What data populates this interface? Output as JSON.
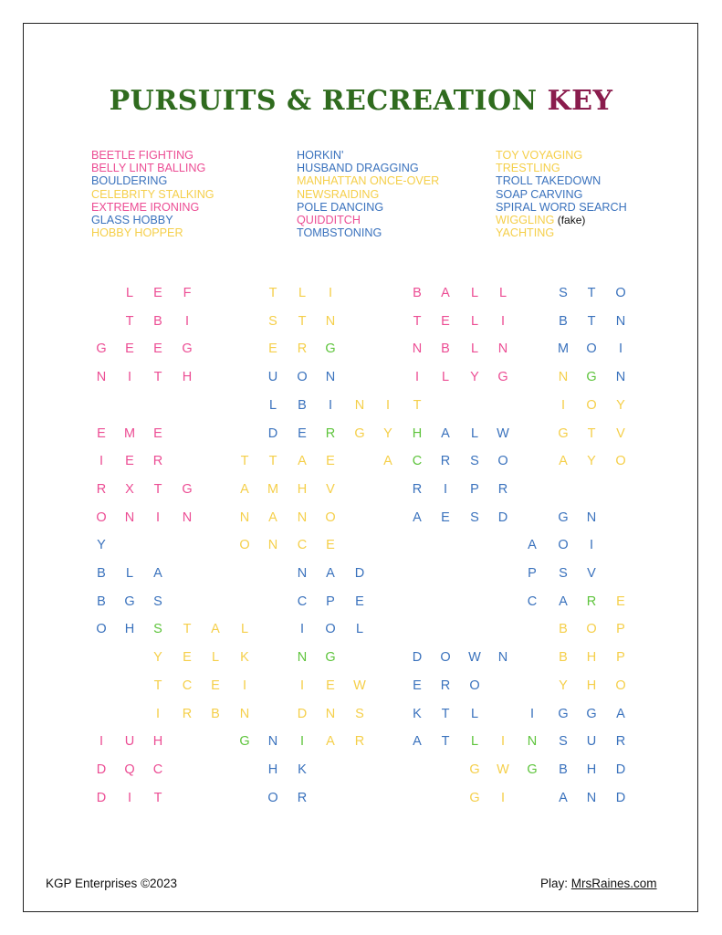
{
  "title": {
    "main": "PURSUITS & RECREATION",
    "key": "KEY"
  },
  "colors": {
    "p": "#ec4d94",
    "b": "#3a72bd",
    "y": "#f5cf4a",
    "g": "#5ec43c",
    "title_green": "#2f6b1e",
    "title_maroon": "#8a1c4d"
  },
  "word_columns": [
    [
      {
        "text": "BEETLE FIGHTING",
        "color": "p"
      },
      {
        "text": "BELLY LINT BALLING",
        "color": "p"
      },
      {
        "text": "BOULDERING",
        "color": "b"
      },
      {
        "text": "CELEBRITY STALKING",
        "color": "y"
      },
      {
        "text": "EXTREME IRONING",
        "color": "p"
      },
      {
        "text": "GLASS HOBBY",
        "color": "b"
      },
      {
        "text": "HOBBY HOPPER",
        "color": "y"
      }
    ],
    [
      {
        "text": "HORKIN'",
        "color": "b"
      },
      {
        "text": "HUSBAND DRAGGING",
        "color": "b"
      },
      {
        "text": "MANHATTAN ONCE-OVER",
        "color": "y"
      },
      {
        "text": "NEWSRAIDING",
        "color": "y"
      },
      {
        "text": "POLE DANCING",
        "color": "b"
      },
      {
        "text": "QUIDDITCH",
        "color": "p"
      },
      {
        "text": "TOMBSTONING",
        "color": "b"
      }
    ],
    [
      {
        "text": "TOY VOYAGING",
        "color": "y"
      },
      {
        "text": "TRESTLING",
        "color": "y"
      },
      {
        "text": "TROLL TAKEDOWN",
        "color": "b"
      },
      {
        "text": "SOAP CARVING",
        "color": "b"
      },
      {
        "text": "SPIRAL WORD SEARCH",
        "color": "b"
      },
      {
        "text": "WIGGLING",
        "color": "y",
        "note": "(fake)"
      },
      {
        "text": "YACHTING",
        "color": "y"
      }
    ]
  ],
  "grid": {
    "letters": [
      ".LEF..TLI..BALL.STO",
      ".TBI..STN..TELI.BTN",
      "GEEG..ERG..NBLN.MOI",
      "NITH..UON..ILYG.NGN",
      "......LBINIT....IOY",
      "EME...DERGYHALW.GTV",
      "IER..TTAE.ACRSO.AYO",
      "RXTG.AMHV..RIPR....",
      "ONIN.NANO..AESD.GN.",
      "Y....ONCE......AOI.",
      "BLA....NAD.....PSV.",
      "BGS....CPE.....CARE",
      "OHSTAL.IOL......BOP",
      "..YELK.NG..DOWN.BHP",
      "..TCEI.IEW.ERO..YHO",
      "..IRBN.DNS.KTL.IGGA",
      "IUH..GNIAR.ATLINSUR",
      "DQC...HK.....GWGBHD",
      "DIT...OR.....GI.AND"
    ],
    "colors": [
      ".ppp..yyy..pppp.bbb",
      ".ppp..yyy..pppp.bbb",
      "pppp..yyg..pppp.bbb",
      "pppp..bbb..pppp.ygb",
      "......bbbyyy....yyy",
      "ppp...bbgyygbbb.yyy",
      "ppp..yyyy.ygbbb.yyy",
      "pppp.yyyy..bbbb....",
      "pppp.yyyy..bbbb.bb.",
      "b....yyyy......bbb.",
      "bbb....bbb.....bbb.",
      "bbb....bbb.....bbgy",
      "bbgyyy.bbb......yyy",
      "..yyyy.gg..bbbb.yyy",
      "..yyyy.yyy.bbb..yyy",
      "..yyyy.yyy.bbb.bbbb",
      "ppp..gbgyy.bbgygbbb",
      "ppp...bb.....yygbbb",
      "ppp...bb.....yy.bbb"
    ]
  },
  "footer": {
    "company": "KGP Enterprises",
    "copyright": "©2023",
    "play_label": "Play:",
    "site": "MrsRaines.com"
  }
}
